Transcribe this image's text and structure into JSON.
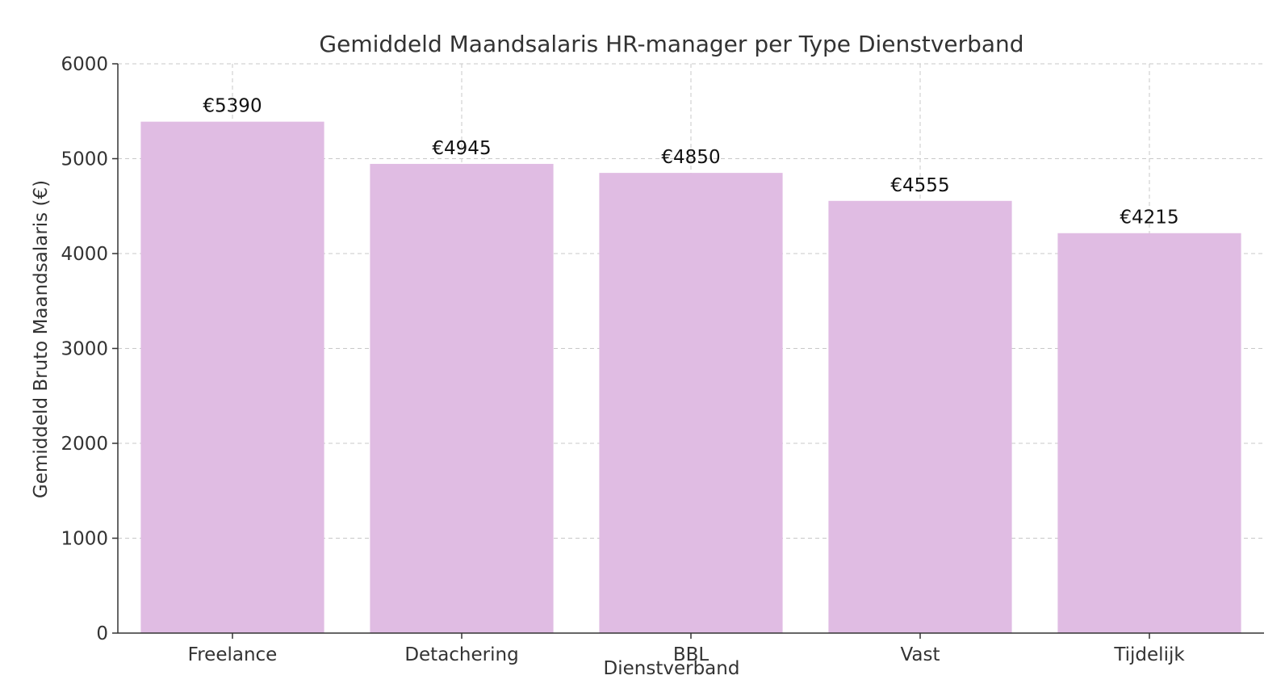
{
  "chart_data": {
    "type": "bar",
    "title": "Gemiddeld Maandsalaris HR-manager per Type Dienstverband",
    "xlabel": "Dienstverband",
    "ylabel": "Gemiddeld Bruto Maandsalaris (€)",
    "categories": [
      "Freelance",
      "Detachering",
      "BBL",
      "Vast",
      "Tijdelijk"
    ],
    "values": [
      5390,
      4945,
      4850,
      4555,
      4215
    ],
    "data_labels": [
      "€5390",
      "€4945",
      "€4850",
      "€4555",
      "€4215"
    ],
    "ylim": [
      0,
      6000
    ],
    "yticks": [
      0,
      1000,
      2000,
      3000,
      4000,
      5000,
      6000
    ],
    "ytick_labels": [
      "0",
      "1000",
      "2000",
      "3000",
      "4000",
      "5000",
      "6000"
    ],
    "grid": true,
    "bar_color": "#e0bce3"
  }
}
